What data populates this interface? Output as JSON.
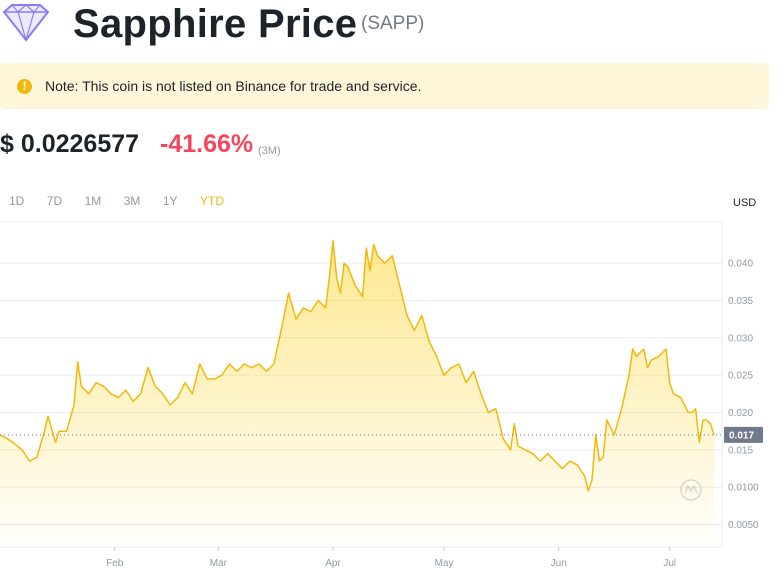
{
  "header": {
    "title": "Sapphire Price",
    "symbol": "(SAPP)",
    "logo_icon": "sapphire-gem-icon"
  },
  "notice": {
    "text": "Note: This coin is not listed on Binance for trade and service.",
    "icon": "exclamation-circle-icon"
  },
  "price": {
    "value": "$ 0.0226577",
    "change": "-41.66%",
    "period": "(3M)"
  },
  "range_tabs": [
    {
      "label": "1D",
      "active": false
    },
    {
      "label": "7D",
      "active": false
    },
    {
      "label": "1M",
      "active": false
    },
    {
      "label": "3M",
      "active": false
    },
    {
      "label": "1Y",
      "active": false
    },
    {
      "label": "YTD",
      "active": true
    }
  ],
  "chart_data": {
    "type": "area",
    "ylabel": "USD",
    "current_price_label": "0.017",
    "current_value": 0.017,
    "y_ticks": [
      "0.0050",
      "0.0100",
      "0.015",
      "0.020",
      "0.025",
      "0.030",
      "0.035",
      "0.040"
    ],
    "y_tick_values": [
      0.005,
      0.01,
      0.015,
      0.02,
      0.025,
      0.03,
      0.035,
      0.04
    ],
    "ylim": [
      0.002,
      0.0455
    ],
    "x_ticks": [
      "Feb",
      "Mar",
      "Apr",
      "May",
      "Jun",
      "Jul"
    ],
    "x_tick_days": [
      31,
      59,
      90,
      120,
      151,
      181
    ],
    "xlim": [
      0,
      193.5
    ],
    "grid": "horizontal",
    "colors": {
      "line": "#f0b90b",
      "fill_top": "#fcd535",
      "current_label_bg": "#707a8a"
    },
    "series": [
      {
        "x": [
          0,
          2,
          4,
          6,
          8,
          10,
          12,
          13,
          15,
          16,
          18,
          20,
          21,
          22,
          24,
          26,
          28,
          30,
          32,
          34,
          36,
          38,
          40,
          42,
          44,
          46,
          48,
          50,
          52,
          54,
          56,
          58,
          60,
          62,
          64,
          66,
          68,
          70,
          72,
          74,
          76,
          78,
          80,
          82,
          84,
          86,
          88,
          89,
          90,
          91,
          92,
          93,
          94,
          96,
          98,
          99,
          100,
          101,
          102,
          104,
          106,
          108,
          110,
          112,
          114,
          116,
          118,
          120,
          122,
          124,
          126,
          128,
          130,
          132,
          134,
          136,
          138,
          139,
          140,
          142,
          144,
          146,
          148,
          150,
          152,
          154,
          156,
          158,
          159,
          160,
          161,
          162,
          163,
          164,
          166,
          168,
          170,
          171,
          172,
          173,
          174,
          175,
          176,
          178,
          180,
          181,
          182,
          184,
          186,
          187,
          188,
          189,
          190,
          191,
          192,
          193
        ],
        "values": [
          0.017,
          0.0165,
          0.0158,
          0.015,
          0.0135,
          0.014,
          0.0175,
          0.0195,
          0.016,
          0.0175,
          0.0175,
          0.021,
          0.0268,
          0.0235,
          0.0225,
          0.024,
          0.0235,
          0.0225,
          0.022,
          0.023,
          0.0215,
          0.0225,
          0.026,
          0.0235,
          0.0225,
          0.021,
          0.022,
          0.024,
          0.0225,
          0.0265,
          0.0245,
          0.0245,
          0.025,
          0.0265,
          0.0255,
          0.0265,
          0.026,
          0.0265,
          0.0255,
          0.0265,
          0.031,
          0.036,
          0.0325,
          0.034,
          0.0335,
          0.035,
          0.034,
          0.038,
          0.043,
          0.038,
          0.036,
          0.04,
          0.0395,
          0.037,
          0.0355,
          0.042,
          0.039,
          0.0425,
          0.041,
          0.04,
          0.041,
          0.037,
          0.033,
          0.031,
          0.033,
          0.0295,
          0.0275,
          0.025,
          0.026,
          0.0265,
          0.024,
          0.0255,
          0.0225,
          0.02,
          0.0205,
          0.0165,
          0.015,
          0.0185,
          0.0155,
          0.015,
          0.0145,
          0.0135,
          0.0145,
          0.0135,
          0.0125,
          0.0135,
          0.013,
          0.0115,
          0.0095,
          0.011,
          0.017,
          0.0135,
          0.014,
          0.019,
          0.017,
          0.0205,
          0.025,
          0.0285,
          0.0275,
          0.028,
          0.0285,
          0.026,
          0.027,
          0.0275,
          0.0285,
          0.024,
          0.0225,
          0.022,
          0.02,
          0.02,
          0.0205,
          0.016,
          0.019,
          0.019,
          0.0185,
          0.017
        ]
      }
    ]
  }
}
